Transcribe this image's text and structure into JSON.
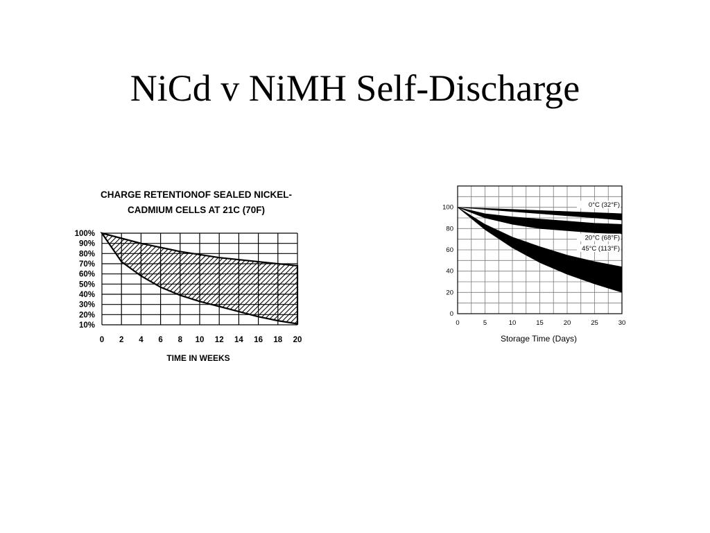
{
  "slide": {
    "title": "NiCd v NiMH Self-Discharge"
  },
  "chart_data": [
    {
      "type": "area",
      "title": "CHARGE RETENTIONOF SEALED NICKEL-CADMIUM CELLS AT 21C (70F)",
      "title_lines": [
        "CHARGE RETENTIONOF SEALED NICKEL-",
        "CADMIUM CELLS AT 21C (70F)"
      ],
      "xlabel": "TIME IN WEEKS",
      "ylabel": "",
      "x_ticks": [
        0,
        2,
        4,
        6,
        8,
        10,
        12,
        14,
        16,
        18,
        20
      ],
      "y_ticks": [
        100,
        90,
        80,
        70,
        60,
        50,
        40,
        30,
        20,
        10
      ],
      "y_tick_labels": [
        "100%",
        "90%",
        "80%",
        "70%",
        "60%",
        "50%",
        "40%",
        "30%",
        "20%",
        "10%"
      ],
      "xlim": [
        0,
        20
      ],
      "ylim": [
        10,
        100
      ],
      "grid": true,
      "fill": "hatched",
      "band": {
        "upper": {
          "x": [
            0,
            4,
            8,
            12,
            16,
            20
          ],
          "y": [
            100,
            90,
            82,
            76,
            72,
            68
          ]
        },
        "lower": {
          "x": [
            0,
            2,
            4,
            6,
            8,
            10,
            12,
            14,
            16,
            18,
            20
          ],
          "y": [
            100,
            72,
            58,
            47,
            39,
            33,
            28,
            23,
            18,
            14,
            11
          ]
        }
      }
    },
    {
      "type": "area",
      "title": "",
      "xlabel": "Storage Time (Days)",
      "ylabel": "",
      "x_ticks": [
        0,
        5,
        10,
        15,
        20,
        25,
        30
      ],
      "y_ticks": [
        0,
        20,
        40,
        60,
        80,
        100
      ],
      "xlim": [
        0,
        30
      ],
      "ylim": [
        0,
        120
      ],
      "grid": true,
      "fill": "solid",
      "bands": [
        {
          "name": "0°C (32°F)",
          "x": [
            0,
            5,
            10,
            15,
            20,
            25,
            30
          ],
          "upper": [
            100,
            99,
            98,
            97,
            96,
            95,
            94
          ],
          "lower": [
            100,
            98,
            96,
            94,
            92,
            90,
            88
          ]
        },
        {
          "name": "20°C (68°F)",
          "x": [
            0,
            5,
            10,
            15,
            20,
            25,
            30
          ],
          "upper": [
            100,
            94,
            91,
            89,
            87,
            85,
            84
          ],
          "lower": [
            100,
            90,
            84,
            80,
            78,
            76,
            75
          ]
        },
        {
          "name": "45°C (113°F)",
          "x": [
            0,
            5,
            10,
            15,
            20,
            25,
            30
          ],
          "upper": [
            100,
            84,
            72,
            63,
            55,
            49,
            44
          ],
          "lower": [
            100,
            79,
            62,
            48,
            37,
            28,
            20
          ]
        }
      ],
      "label_values": {
        "0°C (32°F)": 101,
        "20°C (68°F)": 70,
        "45°C (113°F)": 60
      }
    }
  ]
}
